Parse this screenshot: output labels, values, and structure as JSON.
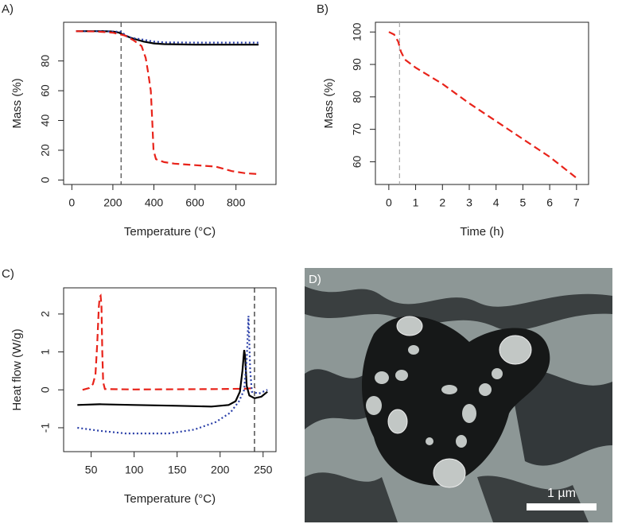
{
  "chart_data": [
    {
      "type": "line",
      "panel_label": "A)",
      "x_label": "Temperature (°C)",
      "y_label": "Mass (%)",
      "xlim": [
        -40,
        995
      ],
      "xticks": [
        0,
        200,
        400,
        600,
        800
      ],
      "ylim": [
        -3,
        106
      ],
      "yticks": [
        0,
        20,
        40,
        60,
        80
      ],
      "vline": 240,
      "vline_color": "#444444",
      "series": [
        {
          "color": "#000000",
          "line_style": "solid",
          "x": [
            20,
            150,
            200,
            230,
            260,
            300,
            350,
            400,
            450,
            600,
            800,
            910
          ],
          "values": [
            100,
            100,
            99.8,
            99,
            97,
            95,
            93,
            91.8,
            91.3,
            91,
            91,
            91
          ]
        },
        {
          "color": "#2a3fa8",
          "line_style": "dotted",
          "x": [
            20,
            150,
            240,
            265,
            290,
            320,
            360,
            400,
            450,
            600,
            800,
            910
          ],
          "values": [
            100,
            100,
            99.6,
            97,
            95.5,
            95,
            94,
            93,
            92.5,
            92.3,
            92.3,
            92.3
          ]
        },
        {
          "color": "#e8231a",
          "line_style": "dashed",
          "x": [
            20,
            120,
            200,
            260,
            300,
            340,
            360,
            372,
            385,
            392,
            398,
            410,
            450,
            500,
            600,
            700,
            780,
            850,
            910
          ],
          "values": [
            100,
            99.8,
            99,
            97,
            94,
            90,
            82,
            72,
            60,
            40,
            20,
            14,
            12,
            11,
            10,
            9,
            6,
            4.5,
            4
          ]
        }
      ]
    },
    {
      "type": "line",
      "panel_label": "B)",
      "x_label": "Time (h)",
      "y_label": "Mass (%)",
      "xlim": [
        -0.5,
        7.45
      ],
      "xticks": [
        0,
        1,
        2,
        3,
        4,
        5,
        6,
        7
      ],
      "ylim": [
        53,
        103
      ],
      "yticks": [
        60,
        70,
        80,
        90,
        100
      ],
      "vline": 0.4,
      "vline_color": "#aaaaaa",
      "series": [
        {
          "color": "#e8231a",
          "line_style": "dashed",
          "x": [
            0,
            0.2,
            0.35,
            0.45,
            0.6,
            1,
            2,
            3,
            4,
            5,
            6,
            7
          ],
          "values": [
            100,
            99.2,
            97,
            94,
            91.5,
            89,
            84,
            78,
            72.5,
            67,
            61.5,
            55
          ]
        }
      ]
    },
    {
      "type": "line",
      "panel_label": "C)",
      "x_label": "Temperature (°C)",
      "y_label": "Heat flow (W/g)",
      "xlim": [
        18,
        265
      ],
      "xticks": [
        50,
        100,
        150,
        200,
        250
      ],
      "ylim": [
        -1.63,
        2.69
      ],
      "yticks": [
        -1,
        0,
        1,
        2
      ],
      "vline": 240,
      "vline_color": "#222222",
      "series": [
        {
          "color": "#e8231a",
          "line_style": "dashed",
          "x": [
            40,
            48,
            52,
            55,
            57,
            59,
            60,
            61,
            62,
            63,
            64,
            66,
            100,
            200,
            230,
            241
          ],
          "values": [
            0,
            0.05,
            0.15,
            0.4,
            1.2,
            2.2,
            2.45,
            2.48,
            2.2,
            1,
            0.2,
            0.02,
            0.01,
            0.02,
            0.03,
            0.05
          ]
        },
        {
          "color": "#000000",
          "line_style": "solid",
          "x": [
            34,
            60,
            100,
            150,
            190,
            210,
            218,
            223,
            226,
            228,
            229,
            231,
            234,
            240,
            248,
            255
          ],
          "values": [
            -0.4,
            -0.38,
            -0.4,
            -0.42,
            -0.44,
            -0.4,
            -0.3,
            -0.05,
            0.5,
            1.05,
            0.9,
            0.1,
            -0.15,
            -0.22,
            -0.18,
            -0.05
          ]
        },
        {
          "color": "#2a3fa8",
          "line_style": "dotted",
          "x": [
            34,
            60,
            90,
            140,
            170,
            195,
            212,
            222,
            228,
            231,
            233,
            235,
            237,
            245,
            255
          ],
          "values": [
            -1,
            -1.08,
            -1.15,
            -1.15,
            -1.05,
            -0.85,
            -0.6,
            -0.3,
            0,
            0.8,
            1.95,
            0.5,
            -0.05,
            -0.1,
            0
          ]
        }
      ]
    }
  ],
  "image": {
    "panel_label": "D)",
    "scale_bar": "1 µm"
  }
}
